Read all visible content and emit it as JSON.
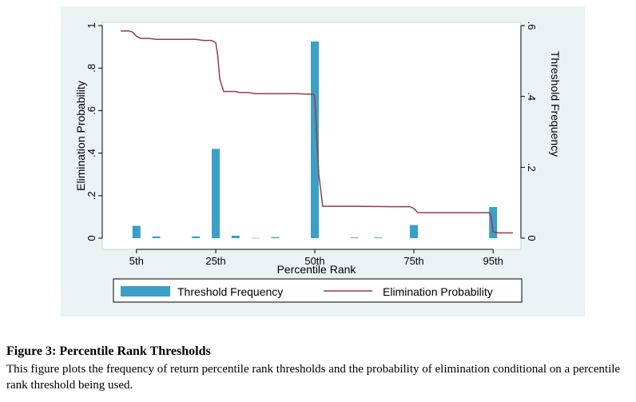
{
  "chart_data": {
    "type": "bar+line",
    "x_label": "Percentile Rank",
    "x_tick_labels": [
      "5th",
      "25th",
      "50th",
      "75th",
      "95th"
    ],
    "x_tick_values": [
      5,
      25,
      50,
      75,
      95
    ],
    "x_range": [
      0,
      100
    ],
    "y_left_label": "Elimination Probability",
    "y_left_tick_labels": [
      "0",
      ".2",
      ".4",
      ".6",
      ".8",
      "1"
    ],
    "y_left_tick_values": [
      0,
      0.2,
      0.4,
      0.6,
      0.8,
      1
    ],
    "y_left_range": [
      0,
      1
    ],
    "y_right_label": "Threshold Frequency",
    "y_right_tick_labels": [
      "0",
      ".2",
      ".4",
      ".6"
    ],
    "y_right_tick_values": [
      0,
      0.2,
      0.4,
      0.6
    ],
    "y_right_range": [
      0,
      0.6
    ],
    "grid": false,
    "legend_position": "bottom",
    "series": [
      {
        "name": "Threshold Frequency",
        "type": "bar",
        "axis": "right",
        "color": "#3aa0c7",
        "x": [
          5,
          10,
          20,
          25,
          30,
          35,
          40,
          50,
          60,
          66,
          75,
          95
        ],
        "values": [
          0.035,
          0.005,
          0.005,
          0.252,
          0.007,
          0.001,
          0.003,
          0.555,
          0.002,
          0.002,
          0.037,
          0.088
        ]
      },
      {
        "name": "Elimination Probability",
        "type": "line",
        "axis": "left",
        "color": "#9b3a44",
        "x": [
          1,
          3,
          4,
          5,
          6,
          8,
          10,
          20,
          22,
          24,
          25,
          25.5,
          26,
          27,
          30,
          31,
          33,
          35,
          40,
          45,
          49,
          49.7,
          50,
          51,
          52,
          60,
          70,
          74,
          75,
          76,
          80,
          90,
          94,
          94.5,
          95,
          96,
          100
        ],
        "values": [
          0.975,
          0.975,
          0.97,
          0.95,
          0.94,
          0.94,
          0.935,
          0.935,
          0.93,
          0.93,
          0.92,
          0.86,
          0.75,
          0.69,
          0.69,
          0.685,
          0.685,
          0.68,
          0.68,
          0.68,
          0.677,
          0.677,
          0.66,
          0.3,
          0.15,
          0.15,
          0.148,
          0.148,
          0.14,
          0.12,
          0.12,
          0.12,
          0.12,
          0.1,
          0.03,
          0.025,
          0.025
        ]
      }
    ]
  },
  "caption": {
    "title": "Figure 3: Percentile Rank Thresholds",
    "text": "This figure plots the frequency of return percentile rank thresholds and the probability of elimination conditional on a percentile rank threshold being used."
  }
}
